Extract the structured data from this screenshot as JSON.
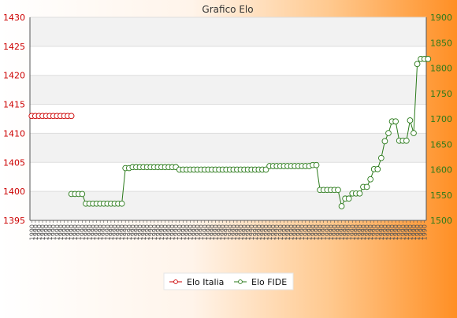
{
  "chart_data": {
    "type": "line",
    "title": "Grafico Elo",
    "y_left": {
      "ylim": [
        1395,
        1430
      ],
      "ticks": [
        "1395",
        "1400",
        "1405",
        "1410",
        "1415",
        "1420",
        "1425",
        "1430"
      ]
    },
    "y_right": {
      "ylim": [
        1500,
        1900
      ],
      "ticks": [
        "1500",
        "1550",
        "1600",
        "1650",
        "1700",
        "1750",
        "1800",
        "1850",
        "1900"
      ]
    },
    "x_count": 110,
    "x_tick_pattern": "1990",
    "grid": true,
    "legend": "bottom-center",
    "series": [
      {
        "name": "Elo Italia",
        "axis": "left",
        "color": "#cc0000",
        "values": [
          1413,
          1413,
          1413,
          1413,
          1413,
          1413,
          1413,
          1413,
          1413,
          1413,
          1413,
          1413
        ]
      },
      {
        "name": "Elo FIDE",
        "axis": "right",
        "color": "#2a7a1a",
        "start_index": 11,
        "values": [
          1552,
          1552,
          1552,
          1552,
          1533,
          1533,
          1533,
          1533,
          1533,
          1533,
          1533,
          1533,
          1533,
          1533,
          1533,
          1603,
          1603,
          1605,
          1605,
          1605,
          1605,
          1605,
          1605,
          1605,
          1605,
          1605,
          1605,
          1605,
          1605,
          1605,
          1600,
          1600,
          1600,
          1600,
          1600,
          1600,
          1600,
          1600,
          1600,
          1600,
          1600,
          1600,
          1600,
          1600,
          1600,
          1600,
          1600,
          1600,
          1600,
          1600,
          1600,
          1600,
          1600,
          1600,
          1600,
          1607,
          1607,
          1607,
          1607,
          1607,
          1607,
          1607,
          1607,
          1607,
          1607,
          1607,
          1607,
          1609,
          1609,
          1560,
          1560,
          1560,
          1560,
          1560,
          1560,
          1528,
          1543,
          1543,
          1553,
          1553,
          1553,
          1566,
          1566,
          1581,
          1601,
          1601,
          1623,
          1656,
          1672,
          1695,
          1695,
          1657,
          1657,
          1657,
          1697,
          1672,
          1808,
          1818,
          1818,
          1818
        ]
      }
    ]
  }
}
